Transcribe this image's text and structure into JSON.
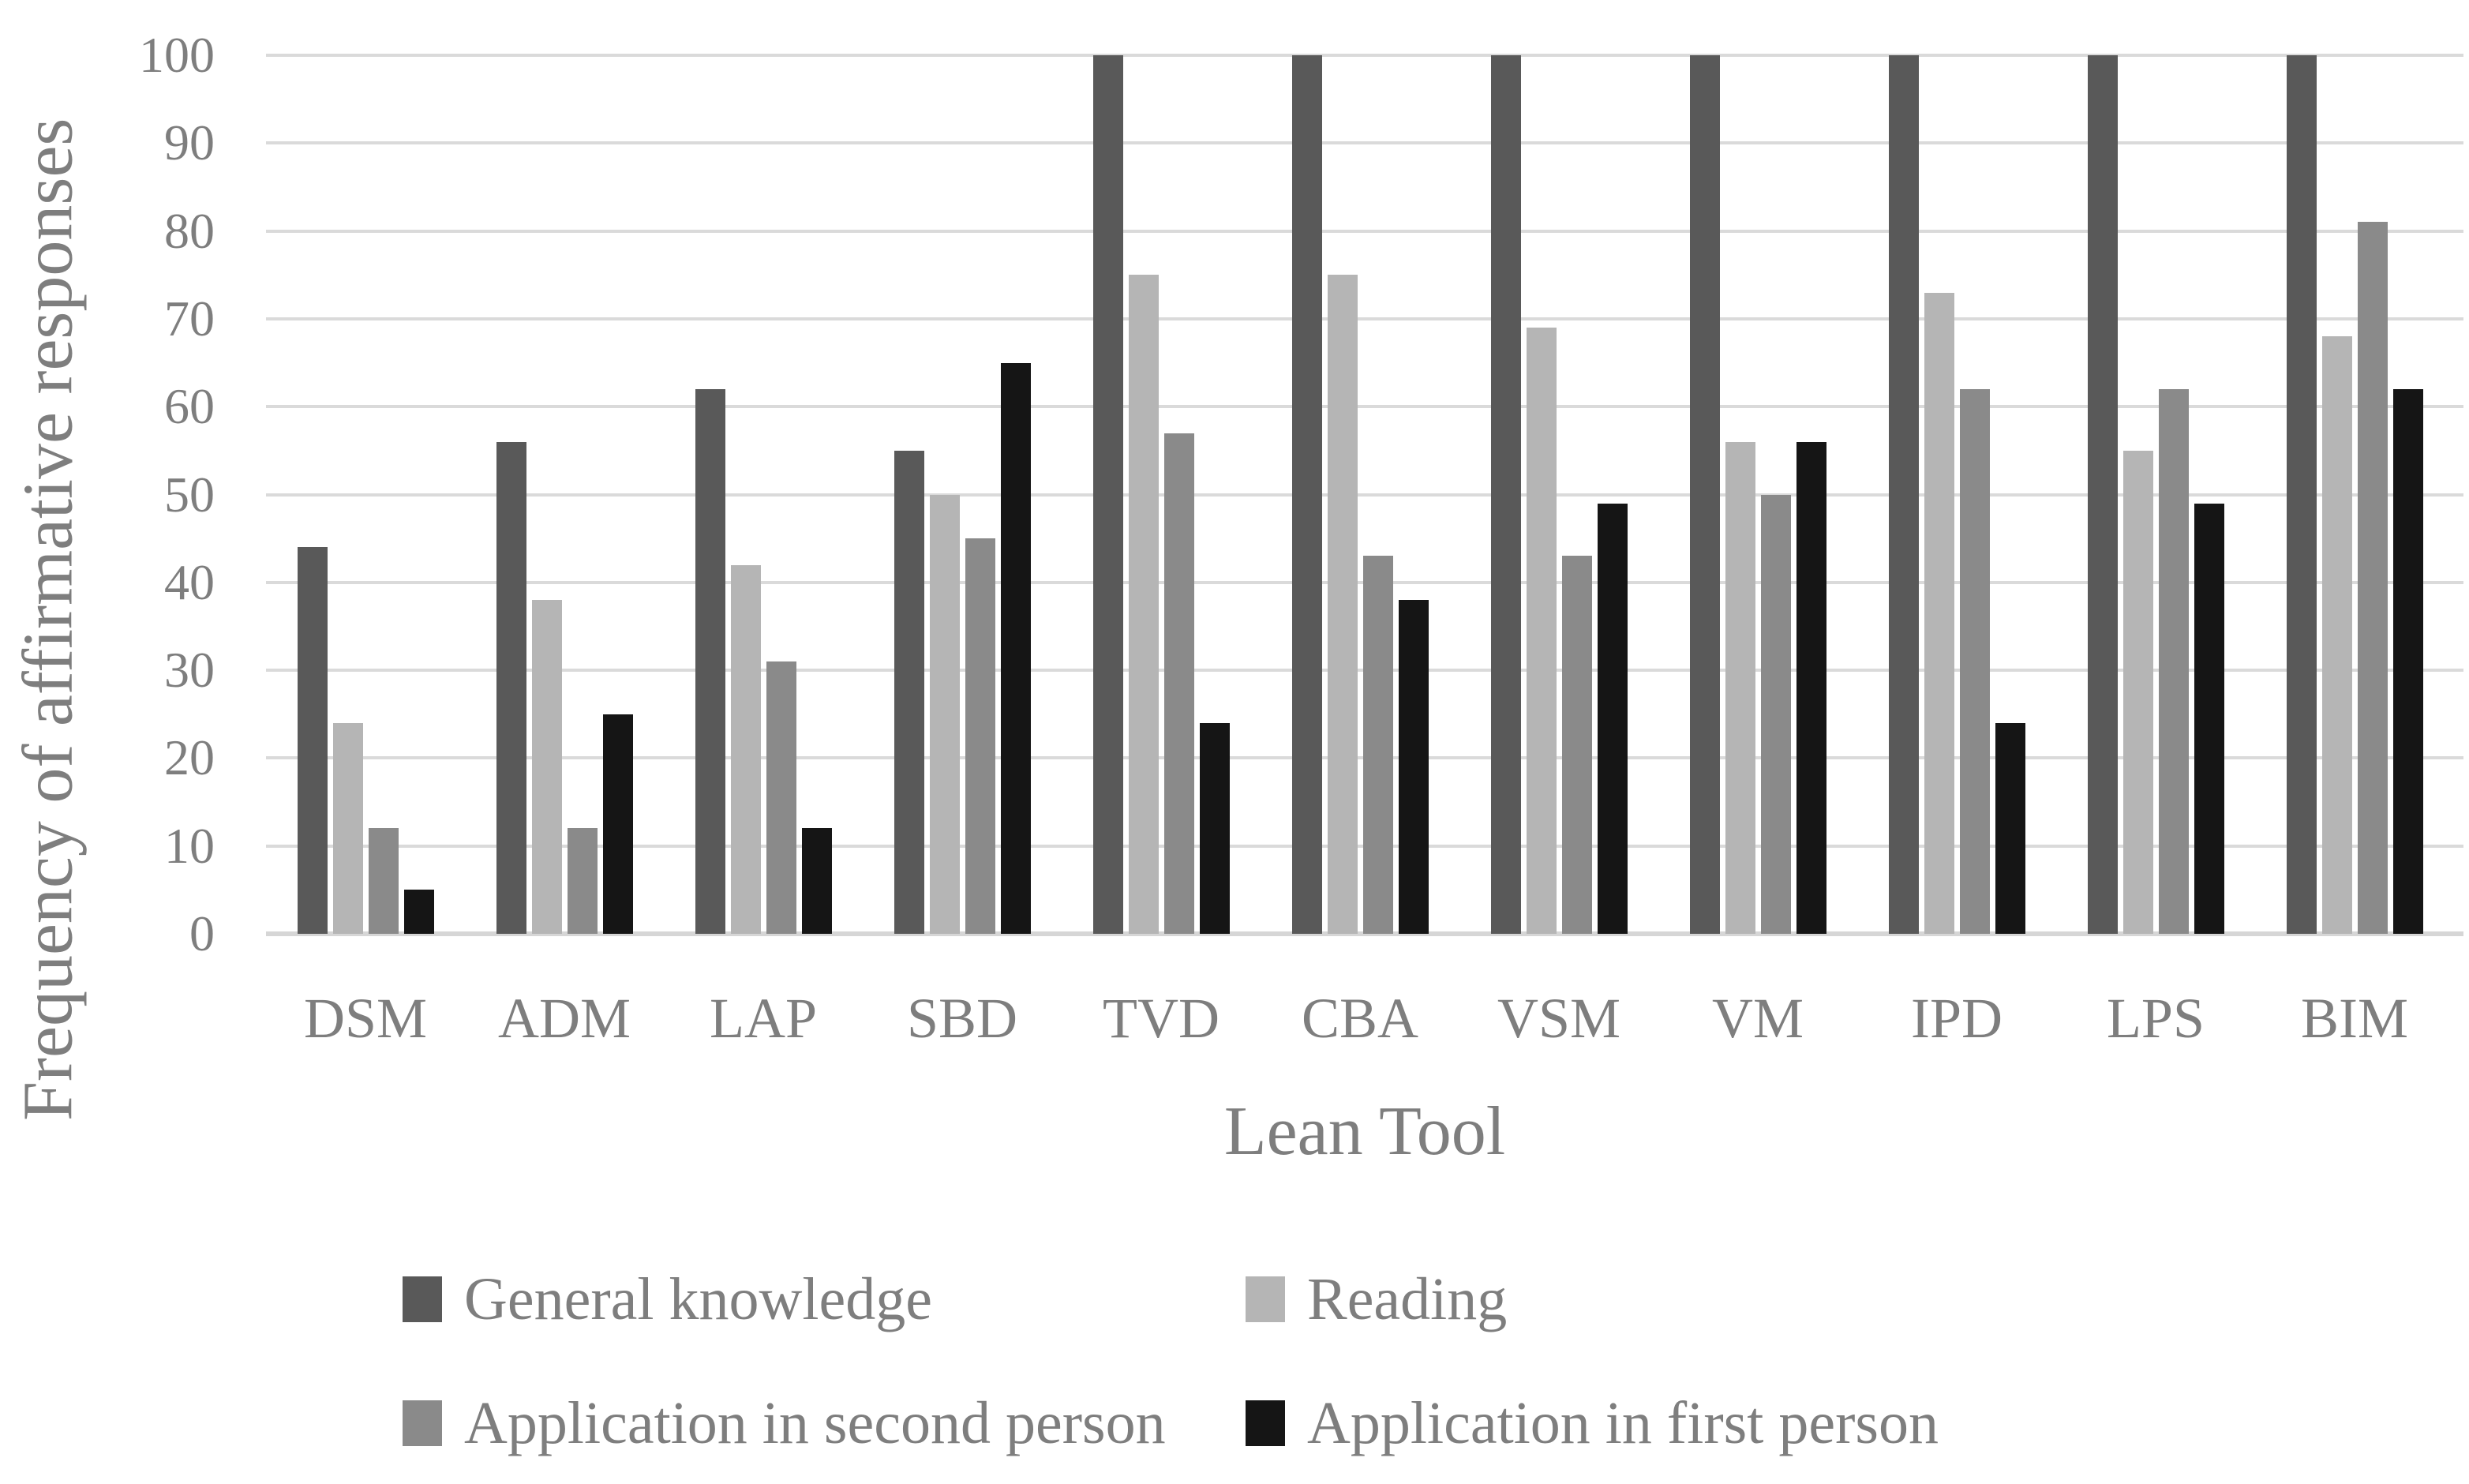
{
  "chart_data": {
    "type": "bar",
    "title": "",
    "xlabel": "Lean Tool",
    "ylabel": "Frequency of affirmative responses",
    "ylim": [
      0,
      100
    ],
    "y_tick_step": 10,
    "grid": true,
    "legend_position": "bottom",
    "categories": [
      "DSM",
      "ADM",
      "LAP",
      "SBD",
      "TVD",
      "CBA",
      "VSM",
      "VM",
      "IPD",
      "LPS",
      "BIM"
    ],
    "series": [
      {
        "name": "General knowledge",
        "color": "#595959",
        "values": [
          44,
          56,
          62,
          55,
          100,
          100,
          100,
          100,
          100,
          100,
          100
        ]
      },
      {
        "name": "Reading",
        "color": "#b5b5b5",
        "values": [
          24,
          38,
          42,
          50,
          75,
          75,
          69,
          56,
          73,
          55,
          68
        ]
      },
      {
        "name": "Application in second person",
        "color": "#8a8a8a",
        "values": [
          12,
          12,
          31,
          45,
          57,
          43,
          43,
          50,
          62,
          62,
          81
        ]
      },
      {
        "name": "Application in first person",
        "color": "#151515",
        "values": [
          5,
          25,
          12,
          65,
          24,
          38,
          49,
          56,
          24,
          49,
          62
        ]
      }
    ]
  },
  "colors": {
    "gridline": "#dadada",
    "axis_line": "#d6d6d6",
    "text": "#7e7e7e",
    "background": "#ffffff"
  }
}
